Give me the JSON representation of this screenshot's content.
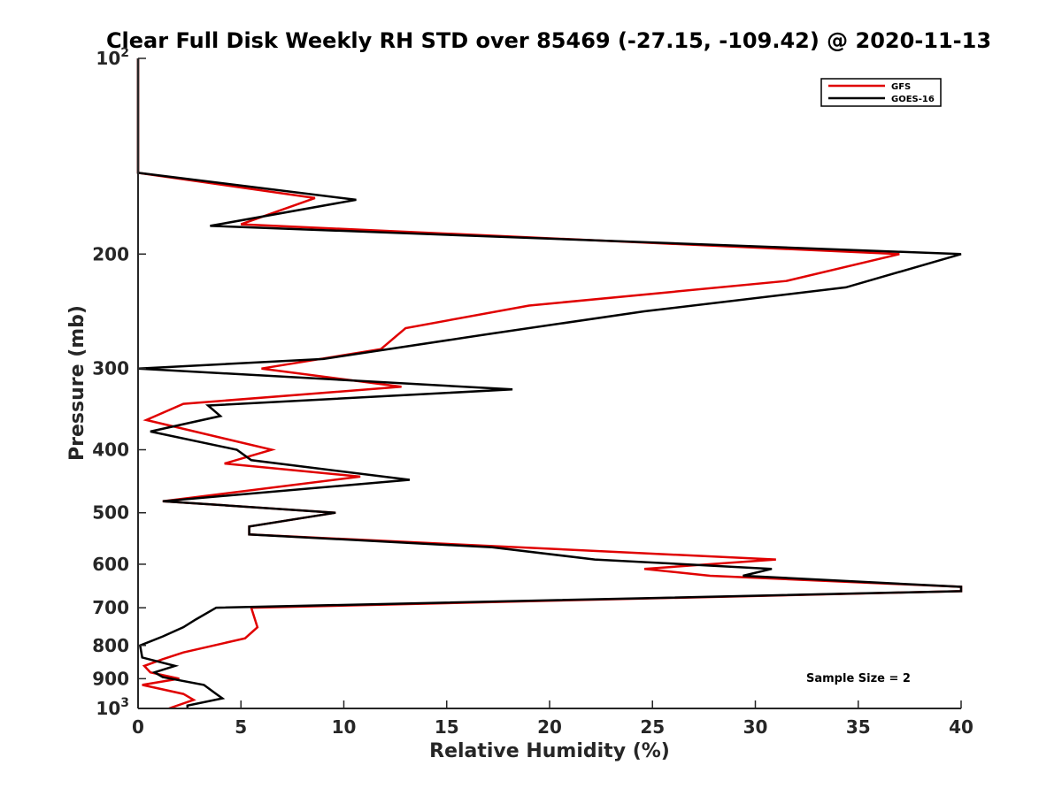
{
  "chart_data": {
    "type": "line",
    "title": "Clear Full Disk Weekly RH STD over 85469 (-27.15, -109.42) @ 2020-11-13",
    "xlabel": "Relative Humidity (%)",
    "ylabel": "Pressure (mb)",
    "xlim": [
      0,
      40
    ],
    "ylim": [
      100,
      1000
    ],
    "y_scale": "log",
    "y_reversed": true,
    "grid": false,
    "legend_position": "top-right",
    "x_ticks": [
      0,
      5,
      10,
      15,
      20,
      25,
      30,
      35,
      40
    ],
    "x_tick_labels": [
      "0",
      "5",
      "10",
      "15",
      "20",
      "25",
      "30",
      "35",
      "40"
    ],
    "y_ticks": [
      100,
      200,
      300,
      400,
      500,
      600,
      700,
      800,
      900,
      1000
    ],
    "y_tick_labels": [
      "10²",
      "200",
      "300",
      "400",
      "500",
      "600",
      "700",
      "800",
      "900",
      "10³"
    ],
    "annotation": "Sample Size = 2",
    "series": [
      {
        "name": "GFS",
        "color": "#e00000",
        "points": [
          [
            0,
            100
          ],
          [
            0,
            150
          ],
          [
            8.6,
            164
          ],
          [
            5,
            180
          ],
          [
            37,
            200
          ],
          [
            31.5,
            220
          ],
          [
            19,
            240
          ],
          [
            13,
            260
          ],
          [
            11.8,
            280
          ],
          [
            6,
            300
          ],
          [
            12.8,
            320
          ],
          [
            2.2,
            340
          ],
          [
            0.4,
            360
          ],
          [
            6.5,
            400
          ],
          [
            4.2,
            420
          ],
          [
            10.8,
            440
          ],
          [
            1.2,
            480
          ],
          [
            9.6,
            500
          ],
          [
            5.4,
            525
          ],
          [
            5.4,
            540
          ],
          [
            31,
            590
          ],
          [
            24.6,
            610
          ],
          [
            27.8,
            625
          ],
          [
            40,
            650
          ],
          [
            40,
            660
          ],
          [
            5.5,
            700
          ],
          [
            5.8,
            750
          ],
          [
            5.2,
            780
          ],
          [
            2.2,
            820
          ],
          [
            1.2,
            840
          ],
          [
            0.3,
            860
          ],
          [
            0.6,
            880
          ],
          [
            2,
            900
          ],
          [
            0.2,
            920
          ],
          [
            2.2,
            950
          ],
          [
            2.7,
            970
          ],
          [
            1.5,
            1000
          ]
        ]
      },
      {
        "name": "GOES-16",
        "color": "#000000",
        "points": [
          [
            0,
            100
          ],
          [
            0,
            150
          ],
          [
            10.6,
            165
          ],
          [
            3.5,
            181
          ],
          [
            40,
            200
          ],
          [
            34.4,
            225
          ],
          [
            24.6,
            245
          ],
          [
            17.2,
            265
          ],
          [
            9,
            290
          ],
          [
            0,
            300
          ],
          [
            18.2,
            323
          ],
          [
            3.4,
            342
          ],
          [
            4,
            355
          ],
          [
            0.6,
            375
          ],
          [
            4.8,
            400
          ],
          [
            5.5,
            415
          ],
          [
            13.2,
            445
          ],
          [
            1.2,
            480
          ],
          [
            9.6,
            500
          ],
          [
            5.4,
            525
          ],
          [
            5.4,
            540
          ],
          [
            17.2,
            565
          ],
          [
            22.2,
            590
          ],
          [
            30.8,
            610
          ],
          [
            29.4,
            625
          ],
          [
            40,
            650
          ],
          [
            40,
            660
          ],
          [
            3.8,
            700
          ],
          [
            2.8,
            730
          ],
          [
            2.2,
            750
          ],
          [
            1.2,
            775
          ],
          [
            0.1,
            800
          ],
          [
            0.2,
            835
          ],
          [
            1.8,
            860
          ],
          [
            0.8,
            880
          ],
          [
            1.2,
            895
          ],
          [
            3.2,
            920
          ],
          [
            3.8,
            950
          ],
          [
            4.1,
            965
          ],
          [
            2.4,
            990
          ],
          [
            2.4,
            1000
          ]
        ]
      }
    ]
  }
}
